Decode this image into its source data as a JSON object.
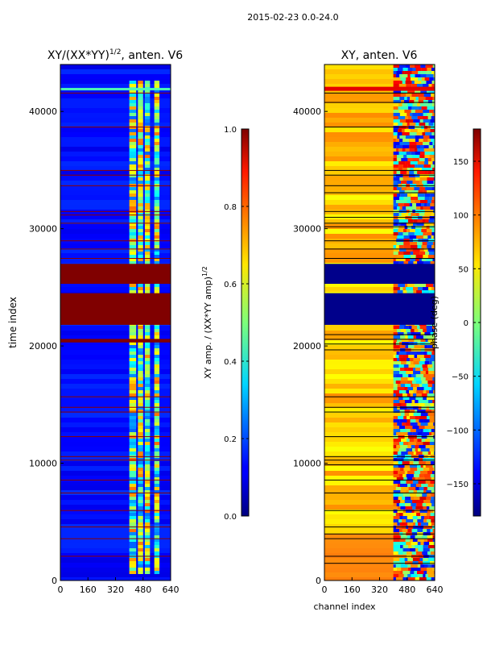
{
  "figure_title": "2015-02-23 0.0-24.0",
  "chart_data": [
    {
      "type": "heatmap",
      "title_main": "XY/(XX*YY)",
      "title_exp": "1/2",
      "title_tail": ", anten. V6",
      "xlabel": "",
      "ylabel": "time index",
      "x_range": [
        0,
        640
      ],
      "y_range": [
        0,
        44000
      ],
      "x_ticks": [
        0,
        160,
        320,
        480,
        640
      ],
      "y_ticks": [
        0,
        10000,
        20000,
        30000,
        40000
      ],
      "colorbar": {
        "label_main": "XY amp. / (XX*YY amp)",
        "label_exp": "1/2",
        "range": [
          0.0,
          1.0
        ],
        "ticks": [
          "0.0",
          "0.2",
          "0.4",
          "0.6",
          "0.8",
          "1.0"
        ],
        "tick_values": [
          0.0,
          0.2,
          0.4,
          0.6,
          0.8,
          1.0
        ]
      },
      "saturated_bands": [
        [
          21800,
          24500
        ],
        [
          25300,
          27000
        ],
        [
          20300,
          20600
        ]
      ],
      "flag_lines": [
        2100,
        3600,
        4600,
        6000,
        7500,
        8600,
        10300,
        10600,
        12300,
        14400,
        14800,
        15700,
        27500,
        28300,
        29000,
        30500,
        31200,
        31500,
        33700,
        34600,
        35000,
        38700,
        41600
      ],
      "bright_channels": [
        [
          400,
          440
        ],
        [
          450,
          480
        ],
        [
          490,
          520
        ],
        [
          545,
          575
        ]
      ]
    },
    {
      "type": "heatmap",
      "title": "XY, anten. V6",
      "xlabel": "channel index",
      "ylabel": "",
      "x_range": [
        0,
        640
      ],
      "y_range": [
        0,
        44000
      ],
      "x_ticks": [
        0,
        160,
        320,
        480,
        640
      ],
      "y_ticks": [
        0,
        10000,
        20000,
        30000,
        40000
      ],
      "colorbar": {
        "label": "phase (deg)",
        "range": [
          -180,
          180
        ],
        "ticks": [
          "−150",
          "−100",
          "−50",
          "0",
          "50",
          "100",
          "150"
        ],
        "tick_values": [
          -150,
          -100,
          -50,
          0,
          50,
          100,
          150
        ]
      },
      "saturated_bands": [
        [
          21800,
          24500
        ],
        [
          25300,
          27000
        ]
      ],
      "flag_lines": [
        1500,
        2100,
        3600,
        4000,
        4600,
        6000,
        7500,
        8600,
        9900,
        10300,
        10600,
        12300,
        14400,
        14800,
        15700,
        19700,
        20200,
        20600,
        21000,
        27500,
        28300,
        29000,
        30200,
        30500,
        31000,
        31500,
        33100,
        33700,
        34600,
        35000,
        38700,
        40800,
        41600
      ],
      "disturbed_channels": [
        400,
        640
      ]
    }
  ]
}
